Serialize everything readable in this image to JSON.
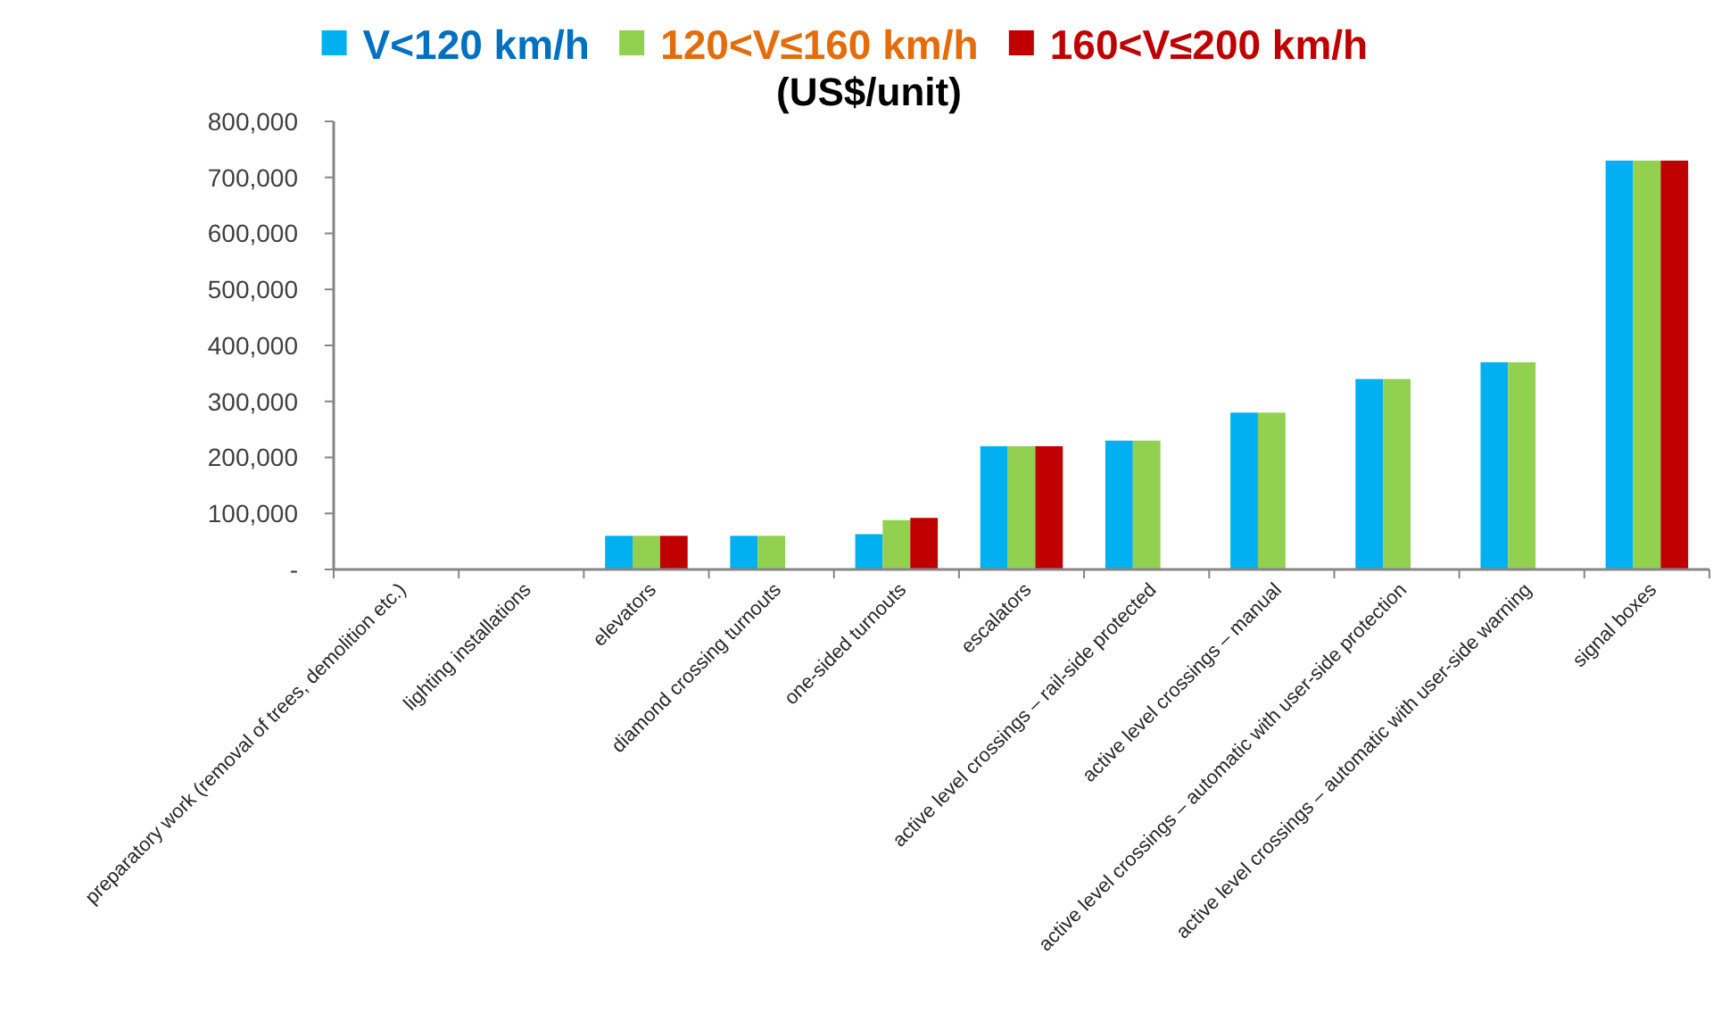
{
  "chart_data": {
    "type": "bar",
    "title": "(US$/unit)",
    "categories": [
      "preparatory work (removal of trees, demolition etc.)",
      "lighting installations",
      "elevators",
      "diamond crossing turnouts",
      "one-sided turnouts",
      "escalators",
      "active level crossings – rail-side protected",
      "active level crossings – manual",
      "active level crossings – automatic with user-side protection",
      "active level crossings – automatic with user-side warning",
      "signal boxes"
    ],
    "series": [
      {
        "name": "V<120 km/h",
        "color": "#00b0f0",
        "values": [
          null,
          null,
          60000,
          60000,
          63000,
          220000,
          230000,
          280000,
          340000,
          370000,
          730000
        ]
      },
      {
        "name": "120<V≤160 km/h",
        "color": "#92d050",
        "values": [
          null,
          null,
          60000,
          60000,
          88000,
          220000,
          230000,
          280000,
          340000,
          370000,
          730000
        ]
      },
      {
        "name": "160<V≤200 km/h",
        "color": "#c00000",
        "values": [
          null,
          null,
          60000,
          null,
          92000,
          220000,
          null,
          null,
          null,
          null,
          730000
        ]
      }
    ],
    "ylim": [
      0,
      800000
    ],
    "yticks": [
      {
        "value": 0,
        "label": "-"
      },
      {
        "value": 100000,
        "label": "100,000"
      },
      {
        "value": 200000,
        "label": "200,000"
      },
      {
        "value": 300000,
        "label": "300,000"
      },
      {
        "value": 400000,
        "label": "400,000"
      },
      {
        "value": 500000,
        "label": "500,000"
      },
      {
        "value": 600000,
        "label": "600,000"
      },
      {
        "value": 700000,
        "label": "700,000"
      },
      {
        "value": 800000,
        "label": "800,000"
      }
    ],
    "legend": "top",
    "grid": false
  }
}
